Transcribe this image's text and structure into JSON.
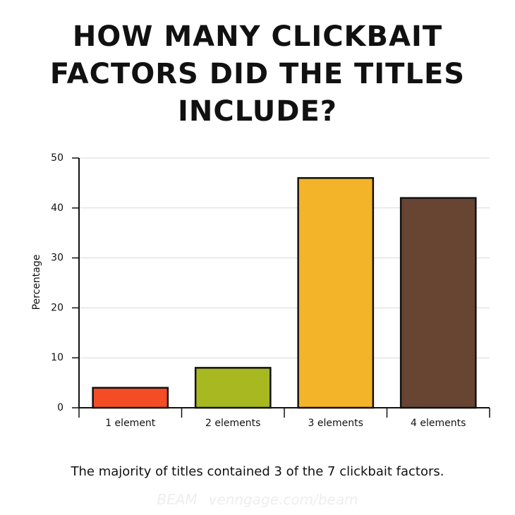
{
  "chart_data": {
    "type": "bar",
    "title": "HOW MANY CLICKBAIT FACTORS DID THE TITLES INCLUDE?",
    "ylabel": "Percentage",
    "categories": [
      "1 element",
      "2 elements",
      "3 elements",
      "4 elements"
    ],
    "values": [
      4,
      8,
      46,
      42
    ],
    "colors": [
      "#f44d25",
      "#a8b820",
      "#f4b42a",
      "#674532"
    ],
    "ylim": [
      0,
      50
    ],
    "yticks": [
      0,
      10,
      20,
      30,
      40,
      50
    ],
    "grid": true,
    "caption": "The majority of titles contained 3 of the 7 clickbait factors."
  },
  "watermark": [
    "BEAM",
    "venngage.com/beam"
  ]
}
